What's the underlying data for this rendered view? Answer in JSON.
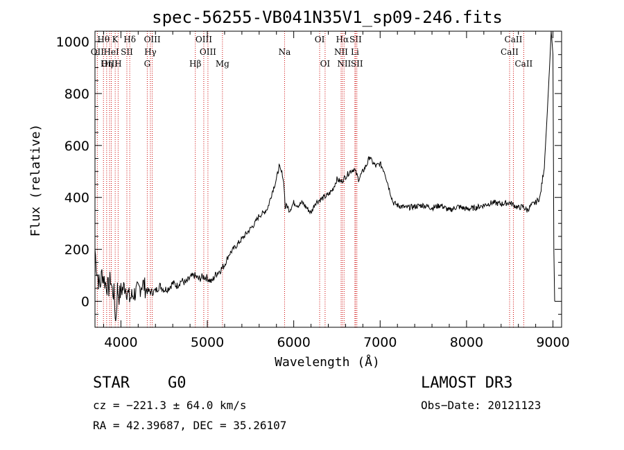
{
  "chart_data": {
    "type": "line",
    "title": "spec-56255-VB041N35V1_sp09-246.fits",
    "xlabel": "Wavelength (Å)",
    "ylabel": "Flux (relative)",
    "xlim": [
      3700,
      9100
    ],
    "ylim": [
      -100,
      1040
    ],
    "xticks": [
      4000,
      5000,
      6000,
      7000,
      8000,
      9000
    ],
    "yticks": [
      0,
      200,
      400,
      600,
      800,
      1000
    ],
    "grid": false,
    "series": [
      {
        "name": "flux",
        "x": [
          3700,
          3720,
          3740,
          3760,
          3780,
          3800,
          3820,
          3840,
          3860,
          3880,
          3900,
          3920,
          3940,
          3960,
          3980,
          4000,
          4050,
          4100,
          4150,
          4200,
          4250,
          4300,
          4350,
          4400,
          4450,
          4500,
          4550,
          4600,
          4650,
          4700,
          4750,
          4800,
          4850,
          4900,
          4950,
          5000,
          5050,
          5100,
          5150,
          5200,
          5250,
          5300,
          5350,
          5400,
          5450,
          5500,
          5550,
          5600,
          5650,
          5700,
          5750,
          5800,
          5830,
          5850,
          5870,
          5890,
          5900,
          5920,
          5950,
          6000,
          6050,
          6100,
          6150,
          6200,
          6250,
          6300,
          6350,
          6400,
          6450,
          6500,
          6550,
          6600,
          6650,
          6700,
          6750,
          6800,
          6850,
          6880,
          6900,
          6950,
          7000,
          7050,
          7100,
          7150,
          7200,
          7300,
          7400,
          7500,
          7600,
          7700,
          7800,
          7900,
          8000,
          8100,
          8200,
          8300,
          8400,
          8500,
          8550,
          8600,
          8650,
          8700,
          8750,
          8800,
          8850,
          8900,
          8930,
          8960,
          8980,
          9000,
          9010,
          9020
        ],
        "values": [
          200,
          120,
          80,
          60,
          110,
          90,
          70,
          60,
          50,
          90,
          40,
          30,
          -80,
          50,
          20,
          40,
          60,
          10,
          30,
          40,
          70,
          40,
          35,
          40,
          60,
          45,
          50,
          70,
          60,
          80,
          70,
          90,
          100,
          85,
          95,
          90,
          75,
          105,
          120,
          140,
          180,
          200,
          220,
          240,
          260,
          280,
          300,
          330,
          340,
          360,
          420,
          470,
          520,
          500,
          490,
          440,
          360,
          370,
          350,
          380,
          370,
          380,
          360,
          340,
          380,
          390,
          400,
          410,
          430,
          470,
          460,
          480,
          500,
          510,
          470,
          500,
          530,
          560,
          540,
          520,
          530,
          500,
          440,
          380,
          370,
          360,
          365,
          370,
          360,
          370,
          350,
          365,
          355,
          360,
          370,
          380,
          375,
          380,
          370,
          360,
          365,
          350,
          370,
          380,
          400,
          520,
          700,
          900,
          1040,
          950,
          200,
          0
        ]
      }
    ],
    "line_markers": [
      {
        "label": "Hθ",
        "wavelength": 3798,
        "row": 0
      },
      {
        "label": "OII",
        "wavelength": 3727,
        "row": 1
      },
      {
        "label": "OIII",
        "wavelength": 3869,
        "row": 2
      },
      {
        "label": "K",
        "wavelength": 3934,
        "row": 0
      },
      {
        "label": "HeI",
        "wavelength": 3889,
        "row": 1
      },
      {
        "label": "Hη",
        "wavelength": 3835,
        "row": 2
      },
      {
        "label": "Hδ",
        "wavelength": 4102,
        "row": 0
      },
      {
        "label": "SII",
        "wavelength": 4069,
        "row": 1
      },
      {
        "label": "H",
        "wavelength": 3968,
        "row": 2
      },
      {
        "label": "OIII",
        "wavelength": 4363,
        "row": 0
      },
      {
        "label": "Hγ",
        "wavelength": 4341,
        "row": 1
      },
      {
        "label": "G",
        "wavelength": 4305,
        "row": 2
      },
      {
        "label": "OIII",
        "wavelength": 4959,
        "row": 0
      },
      {
        "label": "OIII",
        "wavelength": 5007,
        "row": 1
      },
      {
        "label": "Hβ",
        "wavelength": 4861,
        "row": 2
      },
      {
        "label": "Mg",
        "wavelength": 5175,
        "row": 2
      },
      {
        "label": "Na",
        "wavelength": 5894,
        "row": 1
      },
      {
        "label": "OI",
        "wavelength": 6300,
        "row": 0
      },
      {
        "label": "OI",
        "wavelength": 6363,
        "row": 2
      },
      {
        "label": "Hα",
        "wavelength": 6563,
        "row": 0
      },
      {
        "label": "NII",
        "wavelength": 6548,
        "row": 1
      },
      {
        "label": "NII",
        "wavelength": 6583,
        "row": 2
      },
      {
        "label": "SII",
        "wavelength": 6716,
        "row": 0
      },
      {
        "label": "Li",
        "wavelength": 6708,
        "row": 1
      },
      {
        "label": "SII",
        "wavelength": 6731,
        "row": 2
      },
      {
        "label": "CaII",
        "wavelength": 8542,
        "row": 0
      },
      {
        "label": "CaII",
        "wavelength": 8498,
        "row": 1
      },
      {
        "label": "CaII",
        "wavelength": 8662,
        "row": 2
      }
    ]
  },
  "info": {
    "class": "STAR",
    "subclass": "G0",
    "survey": "LAMOST DR3",
    "cz": "cz = −221.3 ± 64.0 km/s",
    "obs_date": "Obs−Date: 20121123",
    "radec": "RA =  42.39687, DEC =  35.26107"
  },
  "colors": {
    "line": "#000000",
    "marker": "#cc0000",
    "background": "#ffffff"
  }
}
